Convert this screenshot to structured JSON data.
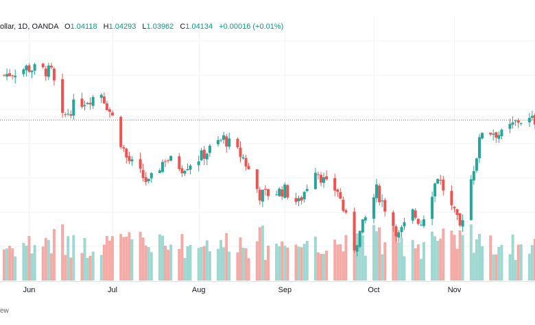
{
  "header": {
    "symbol_fragment": "ollar, 1D, OANDA",
    "open_label": "O",
    "open": "1.04118",
    "high_label": "H",
    "high": "1.04293",
    "low_label": "L",
    "low": "1.03962",
    "close_label": "C",
    "close": "1.04134",
    "change": "+0.00016 (+0.01%)"
  },
  "footer": {
    "text_fragment": "ew"
  },
  "colors": {
    "up": "#26a69a",
    "down": "#ef5350",
    "up_volume": "#9fd8d1",
    "down_volume": "#f6aaa6",
    "last_price_line": "#26a69a",
    "grid": "#f0f3fa",
    "axis_text": "#131722"
  },
  "chart_data": {
    "type": "candlestick",
    "x_range": [
      "2022-05-23",
      "2022-11-30"
    ],
    "y_range": [
      0.955,
      1.09
    ],
    "last_price_line": 1.0413,
    "x_ticks": [
      {
        "label": "Jun",
        "date": "2022-06-01"
      },
      {
        "label": "Jul",
        "date": "2022-07-01"
      },
      {
        "label": "Aug",
        "date": "2022-08-01"
      },
      {
        "label": "Sep",
        "date": "2022-09-01"
      },
      {
        "label": "Oct",
        "date": "2022-10-03"
      },
      {
        "label": "Nov",
        "date": "2022-11-01"
      }
    ],
    "close_series": [
      [
        "2022-05-23",
        1.069
      ],
      [
        "2022-05-31",
        1.0735
      ],
      [
        "2022-06-09",
        1.071
      ],
      [
        "2022-06-13",
        1.042
      ],
      [
        "2022-06-17",
        1.05
      ],
      [
        "2022-06-27",
        1.058
      ],
      [
        "2022-07-01",
        1.043
      ],
      [
        "2022-07-06",
        1.018
      ],
      [
        "2022-07-14",
        1.002
      ],
      [
        "2022-07-20",
        1.018
      ],
      [
        "2022-07-26",
        1.012
      ],
      [
        "2022-08-02",
        1.019
      ],
      [
        "2022-08-10",
        1.03
      ],
      [
        "2022-08-17",
        1.018
      ],
      [
        "2022-08-23",
        0.995
      ],
      [
        "2022-09-01",
        0.998
      ],
      [
        "2022-09-06",
        0.99
      ],
      [
        "2022-09-12",
        1.012
      ],
      [
        "2022-09-16",
        1.001
      ],
      [
        "2022-09-20",
        0.998
      ],
      [
        "2022-09-26",
        0.963
      ],
      [
        "2022-10-04",
        0.998
      ],
      [
        "2022-10-12",
        0.97
      ],
      [
        "2022-10-17",
        0.984
      ],
      [
        "2022-10-20",
        0.978
      ],
      [
        "2022-10-26",
        1.007
      ],
      [
        "2022-11-03",
        0.975
      ],
      [
        "2022-11-11",
        1.035
      ],
      [
        "2022-11-15",
        1.034
      ],
      [
        "2022-11-18",
        1.032
      ],
      [
        "2022-11-24",
        1.041
      ],
      [
        "2022-11-30",
        1.041
      ]
    ]
  }
}
